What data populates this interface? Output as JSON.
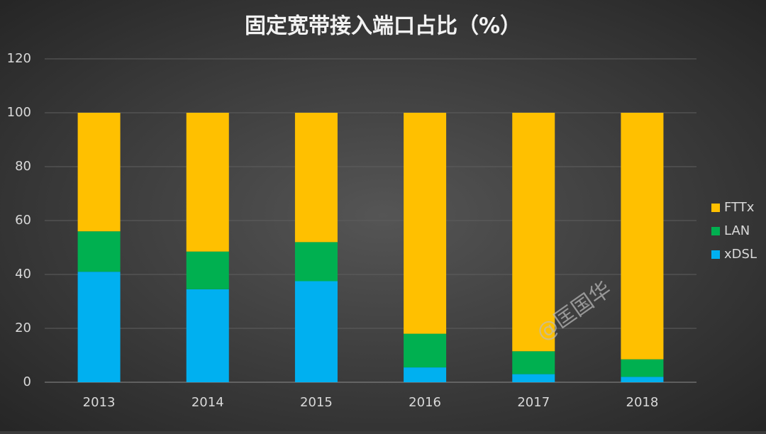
{
  "chart_data": {
    "type": "stacked-bar",
    "title": "固定宽带接入端口占比（%）",
    "categories": [
      "2013",
      "2014",
      "2015",
      "2016",
      "2017",
      "2018"
    ],
    "series": [
      {
        "name": "xDSL",
        "color": "#00b0f0",
        "values": [
          41,
          34.5,
          37.5,
          5.5,
          3,
          2
        ]
      },
      {
        "name": "LAN",
        "color": "#00b050",
        "values": [
          15,
          14,
          14.5,
          12.5,
          8.5,
          6.5
        ]
      },
      {
        "name": "FTTx",
        "color": "#ffc000",
        "values": [
          44,
          51.5,
          48,
          82,
          88.5,
          91.5
        ]
      }
    ],
    "ylim": [
      0,
      120
    ],
    "yticks": [
      0,
      20,
      40,
      60,
      80,
      100,
      120
    ],
    "grid": true,
    "legend": "right",
    "annotation": "@匡国华"
  }
}
